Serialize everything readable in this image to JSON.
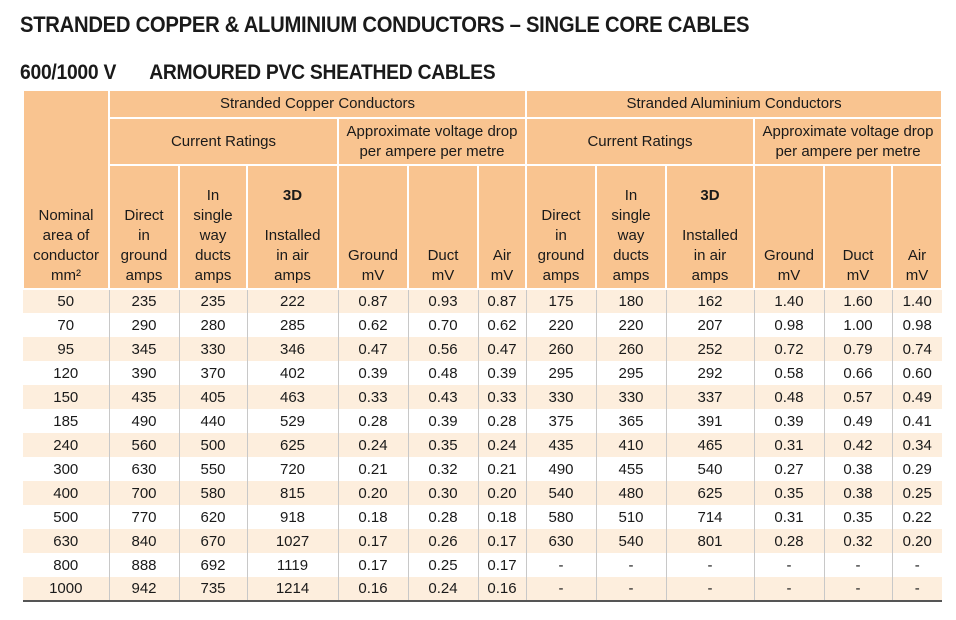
{
  "title": "STRANDED COPPER & ALUMINIUM CONDUCTORS – SINGLE CORE CABLES",
  "voltage": "600/1000 V",
  "subtitle": "ARMOURED PVC SHEATHED CABLES",
  "headers": {
    "nominal": {
      "line1": "Nominal",
      "line2": "area of",
      "line3": "conductor",
      "unit": "mm²"
    },
    "copper": "Stranded Copper Conductors",
    "aluminium": "Stranded Aluminium Conductors",
    "current_ratings": "Current Ratings",
    "vdrop_line1": "Approximate voltage drop",
    "vdrop_line2": "per ampere per metre",
    "direct": {
      "l1": "Direct",
      "l2": "in",
      "l3": "ground",
      "unit": "amps"
    },
    "single": {
      "l1": "In",
      "l2": "single",
      "l3": "way",
      "l4": "ducts",
      "unit": "amps"
    },
    "installed": {
      "l1": "3D",
      "l2": "Installed",
      "l3": "in air",
      "unit": "amps"
    },
    "ground": {
      "label": "Ground",
      "unit": "mV"
    },
    "duct": {
      "label": "Duct",
      "unit": "mV"
    },
    "air": {
      "label": "Air",
      "unit": "mV"
    }
  },
  "rows": [
    [
      "50",
      "235",
      "235",
      "222",
      "0.87",
      "0.93",
      "0.87",
      "175",
      "180",
      "162",
      "1.40",
      "1.60",
      "1.40"
    ],
    [
      "70",
      "290",
      "280",
      "285",
      "0.62",
      "0.70",
      "0.62",
      "220",
      "220",
      "207",
      "0.98",
      "1.00",
      "0.98"
    ],
    [
      "95",
      "345",
      "330",
      "346",
      "0.47",
      "0.56",
      "0.47",
      "260",
      "260",
      "252",
      "0.72",
      "0.79",
      "0.74"
    ],
    [
      "120",
      "390",
      "370",
      "402",
      "0.39",
      "0.48",
      "0.39",
      "295",
      "295",
      "292",
      "0.58",
      "0.66",
      "0.60"
    ],
    [
      "150",
      "435",
      "405",
      "463",
      "0.33",
      "0.43",
      "0.33",
      "330",
      "330",
      "337",
      "0.48",
      "0.57",
      "0.49"
    ],
    [
      "185",
      "490",
      "440",
      "529",
      "0.28",
      "0.39",
      "0.28",
      "375",
      "365",
      "391",
      "0.39",
      "0.49",
      "0.41"
    ],
    [
      "240",
      "560",
      "500",
      "625",
      "0.24",
      "0.35",
      "0.24",
      "435",
      "410",
      "465",
      "0.31",
      "0.42",
      "0.34"
    ],
    [
      "300",
      "630",
      "550",
      "720",
      "0.21",
      "0.32",
      "0.21",
      "490",
      "455",
      "540",
      "0.27",
      "0.38",
      "0.29"
    ],
    [
      "400",
      "700",
      "580",
      "815",
      "0.20",
      "0.30",
      "0.20",
      "540",
      "480",
      "625",
      "0.35",
      "0.38",
      "0.25"
    ],
    [
      "500",
      "770",
      "620",
      "918",
      "0.18",
      "0.28",
      "0.18",
      "580",
      "510",
      "714",
      "0.31",
      "0.35",
      "0.22"
    ],
    [
      "630",
      "840",
      "670",
      "1027",
      "0.17",
      "0.26",
      "0.17",
      "630",
      "540",
      "801",
      "0.28",
      "0.32",
      "0.20"
    ],
    [
      "800",
      "888",
      "692",
      "1119",
      "0.17",
      "0.25",
      "0.17",
      "-",
      "-",
      "-",
      "-",
      "-",
      "-"
    ],
    [
      "1000",
      "942",
      "735",
      "1214",
      "0.16",
      "0.24",
      "0.16",
      "-",
      "-",
      "-",
      "-",
      "-",
      "-"
    ]
  ],
  "colors": {
    "header_bg": "#f9c490",
    "stripe_bg": "#fdeedd"
  }
}
